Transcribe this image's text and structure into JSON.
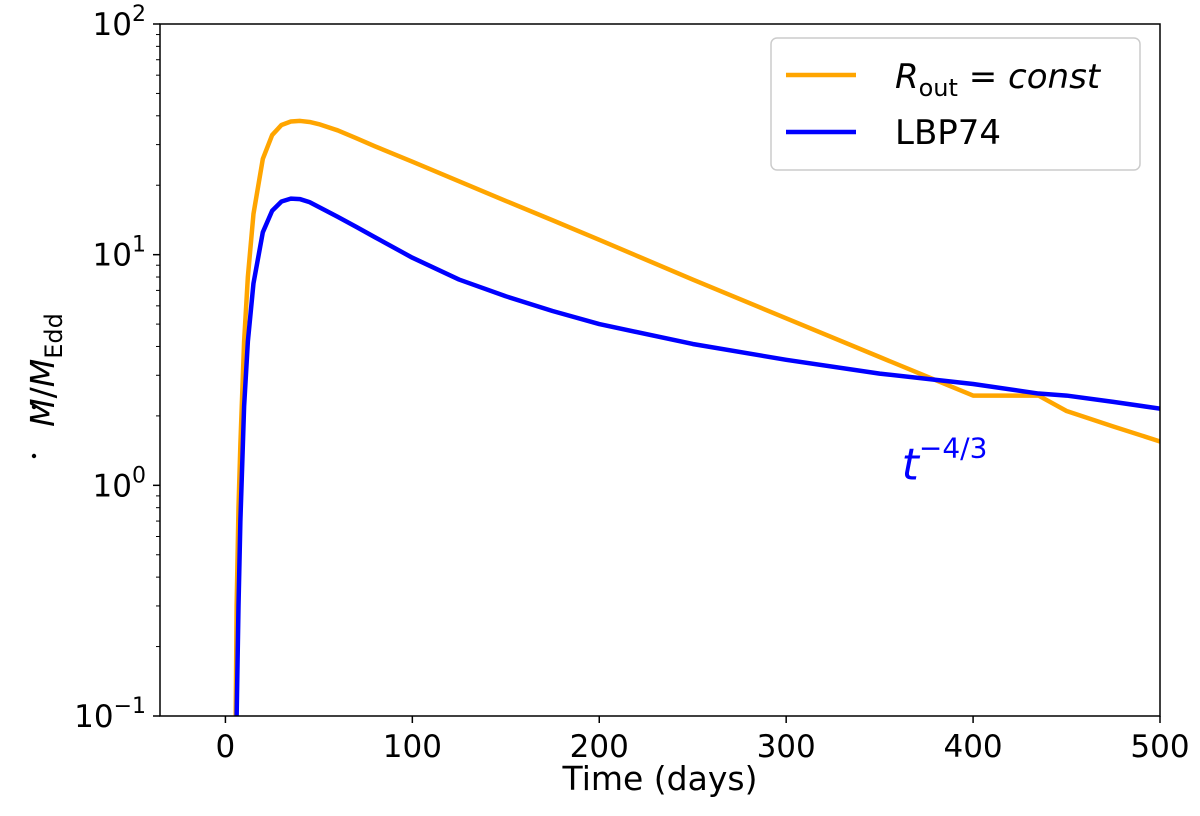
{
  "chart_data": {
    "type": "line",
    "title": "",
    "xlabel": "Time (days)",
    "ylabel": {
      "base": "M",
      "sub": "Edd",
      "text": "Ṁ/ṀEdd"
    },
    "xlim": [
      -35,
      500
    ],
    "ylim": [
      0.1,
      100
    ],
    "yscale": "log",
    "x_ticks": [
      {
        "value": 0,
        "label": "0"
      },
      {
        "value": 100,
        "label": "100"
      },
      {
        "value": 200,
        "label": "200"
      },
      {
        "value": 300,
        "label": "300"
      },
      {
        "value": 400,
        "label": "400"
      },
      {
        "value": 500,
        "label": "500"
      }
    ],
    "y_ticks": [
      {
        "value": 0.1,
        "base": "10",
        "exp": "−1",
        "label": "10^-1"
      },
      {
        "value": 1,
        "base": "10",
        "exp": "0",
        "label": "10^0"
      },
      {
        "value": 10,
        "base": "10",
        "exp": "1",
        "label": "10^1"
      },
      {
        "value": 100,
        "base": "10",
        "exp": "2",
        "label": "10^2"
      }
    ],
    "legend_position": "top-right",
    "series": [
      {
        "name": "R_out = const",
        "legend": {
          "symbol": "R",
          "sub": "out",
          "rest": " = const"
        },
        "color": "#ffa500",
        "x": [
          5.5,
          6,
          7,
          8,
          10,
          12,
          15,
          20,
          25,
          30,
          35,
          40,
          45,
          50,
          60,
          70,
          80,
          100,
          125,
          150,
          175,
          200,
          250,
          300,
          350,
          400,
          435,
          450,
          475,
          500
        ],
        "y": [
          0.1,
          0.3,
          0.8,
          1.5,
          4.2,
          8.0,
          15.0,
          26.0,
          33.0,
          36.5,
          37.8,
          38.0,
          37.6,
          36.8,
          34.6,
          32.0,
          29.5,
          25.3,
          20.8,
          17.1,
          14.1,
          11.6,
          7.8,
          5.3,
          3.6,
          2.45,
          2.45,
          2.1,
          1.8,
          1.55
        ]
      },
      {
        "name": "LBP74",
        "legend": {
          "text": "LBP74"
        },
        "color": "#0000ff",
        "x": [
          6,
          7,
          8,
          10,
          12,
          15,
          20,
          25,
          30,
          35,
          40,
          45,
          50,
          60,
          70,
          80,
          100,
          125,
          150,
          175,
          200,
          250,
          300,
          350,
          400,
          435,
          450,
          475,
          500
        ],
        "y": [
          0.1,
          0.3,
          0.7,
          2.2,
          4.2,
          7.5,
          12.5,
          15.5,
          17.0,
          17.5,
          17.4,
          16.9,
          16.1,
          14.6,
          13.2,
          11.9,
          9.7,
          7.8,
          6.6,
          5.7,
          5.0,
          4.1,
          3.5,
          3.05,
          2.75,
          2.5,
          2.45,
          2.3,
          2.15
        ]
      }
    ],
    "annotations": [
      {
        "base": "t",
        "exp": "−4/3",
        "text": "t^-4/3",
        "x": 350,
        "y": 1.32,
        "color": "#0000ff"
      }
    ]
  }
}
